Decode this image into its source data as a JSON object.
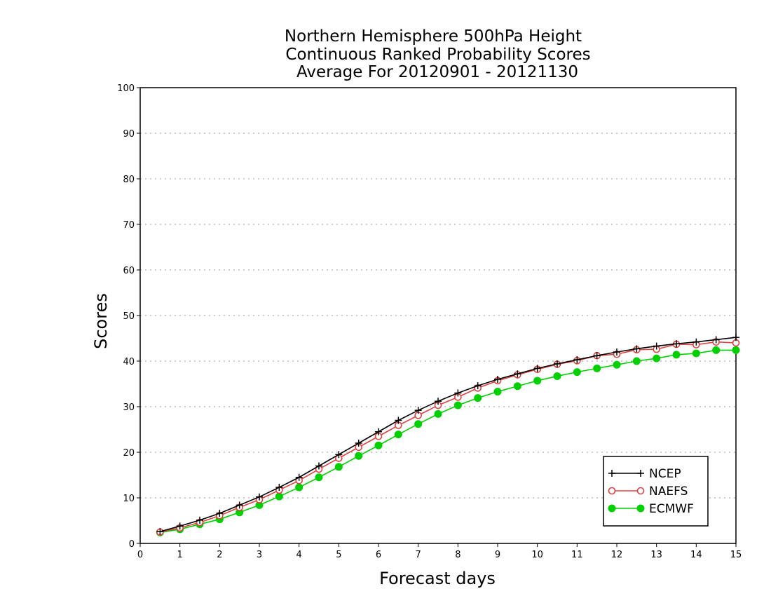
{
  "chart_data": {
    "type": "line",
    "title": [
      "Northern Hemisphere 500hPa Height",
      "Continuous Ranked Probability Scores",
      "Average For 20120901 - 20121130"
    ],
    "xlabel": "Forecast days",
    "ylabel": "Scores",
    "xlim": [
      0,
      15
    ],
    "ylim": [
      0,
      100
    ],
    "xticks": [
      "0",
      "1",
      "2",
      "3",
      "4",
      "5",
      "6",
      "7",
      "8",
      "9",
      "10",
      "11",
      "12",
      "13",
      "14",
      "15"
    ],
    "yticks": [
      "0",
      "10",
      "20",
      "30",
      "40",
      "50",
      "60",
      "70",
      "80",
      "90",
      "100"
    ],
    "grid": true,
    "legend_position": "bottom-right",
    "x": [
      0.5,
      1,
      1.5,
      2,
      2.5,
      3,
      3.5,
      4,
      4.5,
      5,
      5.5,
      6,
      6.5,
      7,
      7.5,
      8,
      8.5,
      9,
      9.5,
      10,
      10.5,
      11,
      11.5,
      12,
      12.5,
      13,
      13.5,
      14,
      14.5,
      15
    ],
    "series": [
      {
        "name": "NCEP",
        "color": "#000000",
        "marker": "plus",
        "values": [
          2.6,
          3.8,
          5.1,
          6.6,
          8.4,
          10.2,
          12.3,
          14.5,
          17.0,
          19.5,
          22.0,
          24.5,
          27.0,
          29.2,
          31.2,
          33.0,
          34.6,
          36.0,
          37.2,
          38.4,
          39.4,
          40.3,
          41.2,
          42.0,
          42.7,
          43.3,
          43.8,
          44.2,
          44.7,
          45.2
        ]
      },
      {
        "name": "NAEFS",
        "color": "#e0403f",
        "marker": "open-circle",
        "values": [
          2.5,
          3.4,
          4.6,
          6.1,
          7.9,
          9.6,
          11.7,
          13.8,
          16.3,
          18.7,
          21.1,
          23.5,
          25.9,
          28.1,
          30.3,
          32.1,
          34.1,
          35.7,
          37.0,
          38.2,
          39.3,
          40.1,
          41.2,
          41.5,
          42.5,
          42.6,
          43.7,
          43.6,
          44.2,
          44.0
        ]
      },
      {
        "name": "ECMWF",
        "color": "#00d000",
        "marker": "filled-circle",
        "values": [
          2.4,
          3.1,
          4.2,
          5.3,
          6.8,
          8.4,
          10.3,
          12.3,
          14.5,
          16.8,
          19.2,
          21.5,
          23.9,
          26.2,
          28.4,
          30.3,
          31.9,
          33.3,
          34.5,
          35.7,
          36.7,
          37.6,
          38.4,
          39.2,
          40.0,
          40.6,
          41.4,
          41.7,
          42.4,
          42.4
        ]
      }
    ]
  }
}
